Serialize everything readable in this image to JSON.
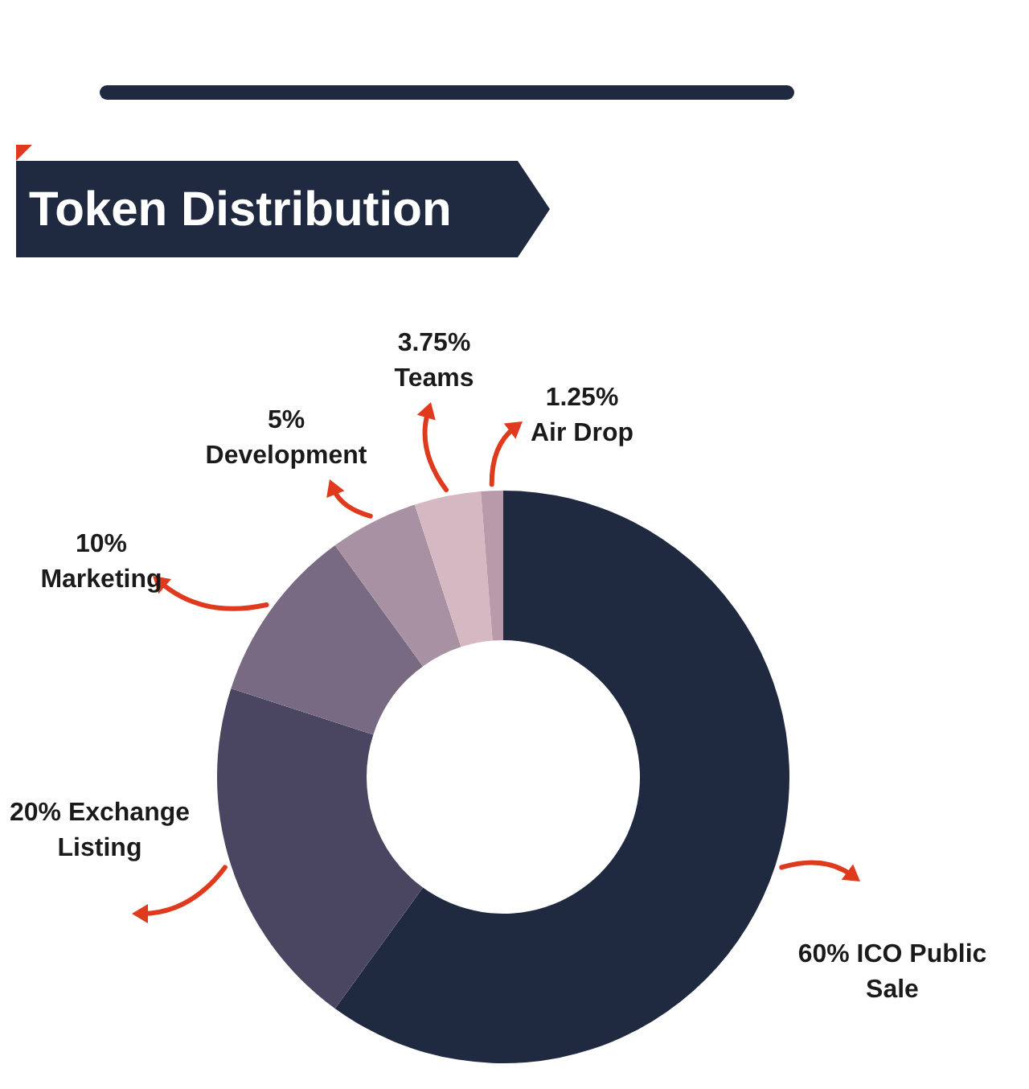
{
  "chart_data": {
    "type": "donut",
    "title": "Token Distribution",
    "categories": [
      "ICO Public Sale",
      "Exchange Listing",
      "Marketing",
      "Development",
      "Teams",
      "Air Drop"
    ],
    "values": [
      60,
      20,
      10,
      5,
      3.75,
      1.25
    ],
    "value_labels": [
      "60%",
      "20%",
      "10%",
      "5%",
      "3.75%",
      "1.25%"
    ],
    "colors": [
      "#1f2a40",
      "#4a4560",
      "#776a82",
      "#a891a3",
      "#d6b8c2",
      "#b89aaa"
    ]
  }
}
